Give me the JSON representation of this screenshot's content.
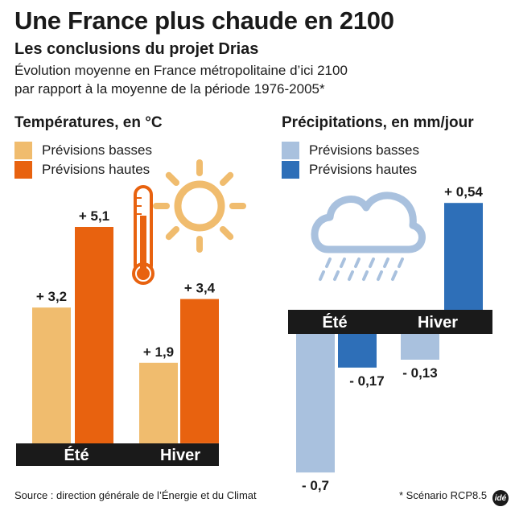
{
  "header": {
    "title": "Une France plus chaude en 2100",
    "subtitle": "Les conclusions du projet Drias",
    "description_line1": "Évolution moyenne en France métropolitaine d’ici 2100",
    "description_line2": "par rapport à la moyenne de la période 1976-2005*"
  },
  "colors": {
    "temp_low": "#f0bc6e",
    "temp_high": "#e8620f",
    "precip_low": "#a9c1de",
    "precip_high": "#2e6fb8",
    "axis_band": "#1a1a1a",
    "sun": "#f0bc6e",
    "cloud": "#a9c1de",
    "thermo": "#e8620f"
  },
  "icons": [
    "thermometer-icon",
    "sun-icon",
    "cloud-rain-icon"
  ],
  "footer": {
    "source": "Source : direction générale de l’Énergie et du Climat",
    "note": "* Scénario RCP8.5",
    "logo": "idé"
  },
  "chart_data": [
    {
      "type": "bar",
      "title": "Températures, en °C",
      "categories": [
        "Été",
        "Hiver"
      ],
      "series": [
        {
          "name": "Prévisions basses",
          "values": [
            3.2,
            1.9
          ],
          "labels": [
            "+ 3,2",
            "+ 1,9"
          ]
        },
        {
          "name": "Prévisions hautes",
          "values": [
            5.1,
            3.4
          ],
          "labels": [
            "+ 5,1",
            "+ 3,4"
          ]
        }
      ],
      "ylim": [
        0,
        6.3
      ]
    },
    {
      "type": "bar",
      "title": "Précipitations, en mm/jour",
      "categories": [
        "Été",
        "Hiver"
      ],
      "series": [
        {
          "name": "Prévisions basses",
          "values": [
            -0.7,
            -0.13
          ],
          "labels": [
            "- 0,7",
            "- 0,13"
          ]
        },
        {
          "name": "Prévisions hautes",
          "values": [
            -0.17,
            0.54
          ],
          "labels": [
            "- 0,17",
            "+ 0,54"
          ]
        }
      ],
      "ylim": [
        -0.8,
        0.6
      ]
    }
  ]
}
